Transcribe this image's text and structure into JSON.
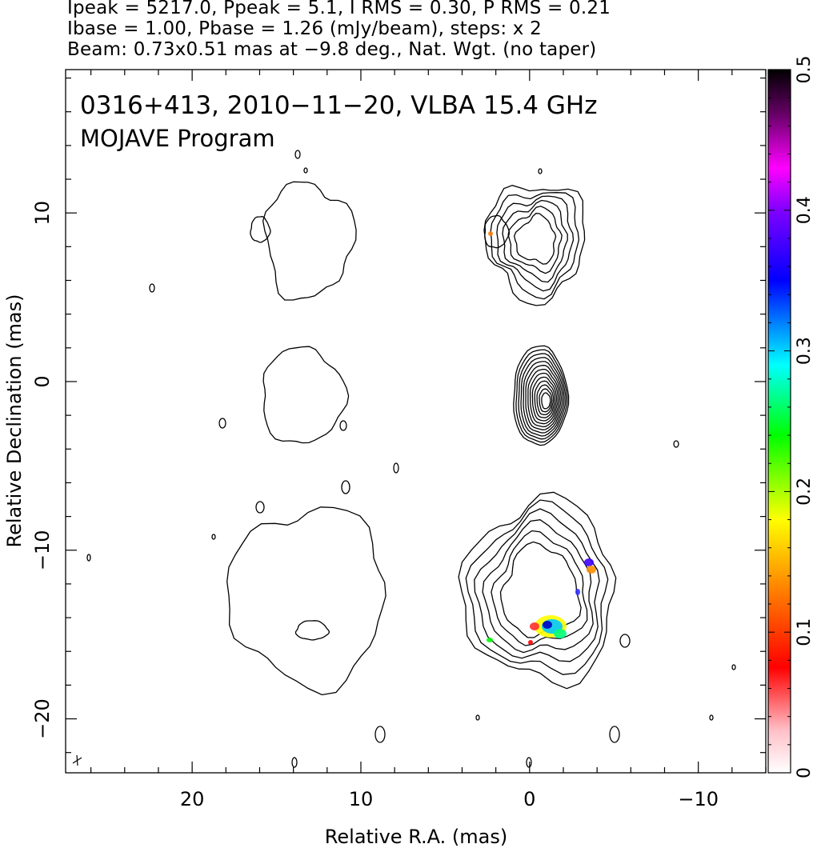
{
  "header": {
    "line1": "Ipeak = 5217.0, Ppeak = 5.1, I RMS = 0.30, P RMS = 0.21",
    "line2": "Ibase = 1.00, Pbase = 1.26 (mJy/beam), steps: x 2",
    "line3": "Beam: 0.73x0.51 mas at −9.8 deg., Nat. Wgt. (no taper)"
  },
  "chart_data": {
    "type": "contour",
    "title": "0316+413, 2010−11−20, VLBA 15.4 GHz",
    "subtitle": "MOJAVE Program",
    "xlabel": "Relative R.A. (mas)",
    "ylabel": "Relative Declination (mas)",
    "xlim": [
      27.5,
      -14.0
    ],
    "ylim": [
      -23.2,
      18.5
    ],
    "x_tick_labels": [
      "20",
      "10",
      "0",
      "−10"
    ],
    "x_tick_values": [
      20,
      10,
      0,
      -10
    ],
    "y_tick_labels": [
      "−20",
      "−10",
      "0",
      "10"
    ],
    "y_tick_values": [
      -20,
      -10,
      0,
      10
    ],
    "colorbar": {
      "min": 0,
      "max": 0.5,
      "tick_labels": [
        "0",
        "0.1",
        "0.2",
        "0.3",
        "0.4",
        "0.5"
      ],
      "tick_values": [
        0,
        0.1,
        0.2,
        0.3,
        0.4,
        0.5
      ]
    },
    "contour_levels_mJy": [
      1,
      2,
      4,
      8,
      16,
      32,
      64,
      128,
      256,
      512,
      1024,
      2048,
      4096
    ],
    "panels": [
      {
        "id": "stokes-i-left",
        "center": [
          12.5,
          -1.0
        ],
        "levels": 1
      },
      {
        "id": "stokes-i-right",
        "center": [
          0.5,
          -1.5
        ],
        "levels": 12
      },
      {
        "id": "pol-left-top",
        "center": [
          13.5,
          9.0
        ],
        "levels": 1
      },
      {
        "id": "pol-right-top",
        "center": [
          -1.0,
          8.8
        ],
        "levels": 6
      },
      {
        "id": "pol-left-bottom",
        "center": [
          12.5,
          -13.0
        ],
        "levels": 1
      },
      {
        "id": "pol-right-bottom",
        "center": [
          -0.5,
          -12.5
        ],
        "levels": 6
      }
    ]
  },
  "colors": {
    "colorbar_stops": [
      "#ffffff",
      "#ffc0c0",
      "#ff0000",
      "#ff8000",
      "#ffff00",
      "#00ff00",
      "#00ffff",
      "#0000ff",
      "#8000ff",
      "#ff00ff",
      "#600060",
      "#000000"
    ]
  }
}
